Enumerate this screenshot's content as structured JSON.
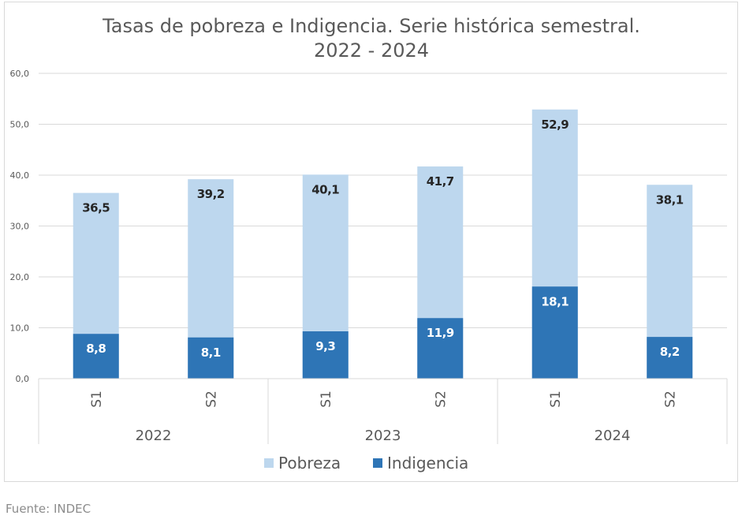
{
  "source": "Fuente: INDEC",
  "colors": {
    "pobreza": "#bdd7ee",
    "indigencia": "#2e75b6",
    "grid": "#d9d9d9",
    "text": "#595959",
    "label_dark": "#262626",
    "label_light": "#ffffff"
  },
  "chart_data": {
    "type": "bar",
    "subtype": "overlapping-grouped-by-year",
    "title": "Tasas de pobreza e Indigencia. Serie histórica semestral.",
    "subtitle": "2022 - 2024",
    "xlabel": "",
    "ylabel": "",
    "ylim": [
      0,
      60
    ],
    "yticks": [
      "0,0",
      "10,0",
      "20,0",
      "30,0",
      "40,0",
      "50,0",
      "60,0"
    ],
    "grid": true,
    "legend_position": "bottom",
    "groups": [
      {
        "year": "2022",
        "categories": [
          "S1",
          "S2"
        ]
      },
      {
        "year": "2023",
        "categories": [
          "S1",
          "S2"
        ]
      },
      {
        "year": "2024",
        "categories": [
          "S1",
          "S2"
        ]
      }
    ],
    "series": [
      {
        "name": "Pobreza",
        "values": [
          36.5,
          39.2,
          40.1,
          41.7,
          52.9,
          38.1
        ],
        "labels": [
          "36,5",
          "39,2",
          "40,1",
          "41,7",
          "52,9",
          "38,1"
        ]
      },
      {
        "name": "Indigencia",
        "values": [
          8.8,
          8.1,
          9.3,
          11.9,
          18.1,
          8.2
        ],
        "labels": [
          "8,8",
          "8,1",
          "9,3",
          "11,9",
          "18,1",
          "8,2"
        ]
      }
    ]
  }
}
